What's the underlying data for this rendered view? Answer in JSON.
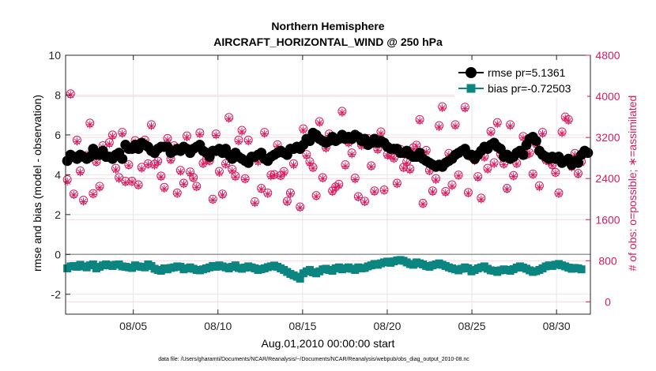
{
  "chart_data": {
    "type": "scatter",
    "title": "Northern Hemisphere",
    "subtitle": "AIRCRAFT_HORIZONTAL_WIND @ 250 hPa",
    "xlabel": "Aug.01,2010 00:00:00 start",
    "ylabel_left": "rmse and bias (model - observation)",
    "ylabel_right": "# of obs: o=possible; ∗=assimilated",
    "footnote": "data file: /Users/gharamti/Documents/NCAR/Reanalysis/~/Documents/NCAR/Reanalysis/webpub/obs_diag_output_2010-08.nc",
    "x_ticks": [
      "08/05",
      "08/10",
      "08/15",
      "08/20",
      "08/25",
      "08/30"
    ],
    "x_tick_days": [
      5,
      10,
      15,
      20,
      25,
      30
    ],
    "xlim_days": [
      1,
      32
    ],
    "ylim_left": [
      -3,
      10
    ],
    "y_ticks_left": [
      -2,
      0,
      2,
      4,
      6,
      8,
      10
    ],
    "ylim_right": [
      -240,
      4800
    ],
    "y_ticks_right": [
      0,
      800,
      1600,
      2400,
      3200,
      4000,
      4800
    ],
    "zero_line": 0,
    "grid": true,
    "legend_position": "top-right",
    "colors": {
      "rmse": "#000000",
      "bias": "#0a8580",
      "obs": "#d81b60"
    },
    "series": [
      {
        "name": "rmse pr=5.1361",
        "axis": "left",
        "marker": "circle",
        "values": [
          4.7,
          5.0,
          4.9,
          4.8,
          5.0,
          4.9,
          4.8,
          4.9,
          5.3,
          5.0,
          5.0,
          5.2,
          4.9,
          4.9,
          4.8,
          5.0,
          5.1,
          4.8,
          5.5,
          5.3,
          5.3,
          5.5,
          5.3,
          5.6,
          5.5,
          5.4,
          5.2,
          5.1,
          5.3,
          5.4,
          5.4,
          5.4,
          5.1,
          5.2,
          5.3,
          5.2,
          5.4,
          5.3,
          5.1,
          5.3,
          5.4,
          5.5,
          5.2,
          5.1,
          4.9,
          5.2,
          5.2,
          5.3,
          5.1,
          5.3,
          5.0,
          4.8,
          5.1,
          4.9,
          4.8,
          4.7,
          4.6,
          4.9,
          4.9,
          5.0,
          5.1,
          4.8,
          4.7,
          4.9,
          5.0,
          5.1,
          5.2,
          5.1,
          5.0,
          5.3,
          5.3,
          5.4,
          5.3,
          5.5,
          5.8,
          5.7,
          6.1,
          6.0,
          5.8,
          5.7,
          5.6,
          5.7,
          5.9,
          5.7,
          5.8,
          6.0,
          5.8,
          5.9,
          5.8,
          6.0,
          5.9,
          5.7,
          5.8,
          5.5,
          5.6,
          5.8,
          5.6,
          5.7,
          5.6,
          5.4,
          5.3,
          5.3,
          5.3,
          5.1,
          5.1,
          5.2,
          5.0,
          4.9,
          4.9,
          5.1,
          4.8,
          4.7,
          4.6,
          4.5,
          4.4,
          4.5,
          4.4,
          4.6,
          4.7,
          4.8,
          5.0,
          5.1,
          5.2,
          5.3,
          5.0,
          5.0,
          4.8,
          5.0,
          5.2,
          5.4,
          5.3,
          5.5,
          5.6,
          5.4,
          5.3,
          4.9,
          5.0,
          4.8,
          4.9,
          5.1,
          5.2,
          5.0,
          5.5,
          5.8,
          5.9,
          5.7,
          5.2,
          5.0,
          4.9,
          4.8,
          4.9,
          4.8,
          4.9,
          4.6,
          4.7,
          4.8,
          4.5,
          4.7,
          4.6,
          5.0,
          5.2,
          5.1
        ]
      },
      {
        "name": "bias pr=-0.72503",
        "axis": "left",
        "marker": "square",
        "values": [
          -0.7,
          -0.6,
          -0.58,
          -0.62,
          -0.52,
          -0.6,
          -0.65,
          -0.55,
          -0.5,
          -0.7,
          -0.62,
          -0.55,
          -0.5,
          -0.55,
          -0.58,
          -0.52,
          -0.5,
          -0.6,
          -0.62,
          -0.65,
          -0.68,
          -0.55,
          -0.6,
          -0.62,
          -0.65,
          -0.5,
          -0.58,
          -0.72,
          -0.78,
          -0.82,
          -0.7,
          -0.75,
          -0.68,
          -0.65,
          -0.6,
          -0.62,
          -0.75,
          -0.7,
          -0.65,
          -0.72,
          -0.78,
          -0.8,
          -0.75,
          -0.7,
          -0.65,
          -0.58,
          -0.62,
          -0.55,
          -0.6,
          -0.65,
          -0.7,
          -0.62,
          -0.55,
          -0.68,
          -0.72,
          -0.66,
          -0.6,
          -0.65,
          -0.7,
          -0.78,
          -0.74,
          -0.7,
          -0.64,
          -0.6,
          -0.56,
          -0.62,
          -0.7,
          -0.78,
          -0.88,
          -0.98,
          -1.05,
          -1.12,
          -1.22,
          -0.95,
          -0.85,
          -0.78,
          -0.9,
          -0.95,
          -0.85,
          -0.75,
          -0.72,
          -0.78,
          -0.82,
          -0.7,
          -0.65,
          -0.75,
          -0.7,
          -0.65,
          -0.72,
          -0.78,
          -0.65,
          -0.7,
          -0.68,
          -0.6,
          -0.55,
          -0.48,
          -0.52,
          -0.45,
          -0.4,
          -0.36,
          -0.42,
          -0.35,
          -0.3,
          -0.28,
          -0.32,
          -0.4,
          -0.48,
          -0.52,
          -0.4,
          -0.45,
          -0.5,
          -0.58,
          -0.62,
          -0.55,
          -0.5,
          -0.45,
          -0.52,
          -0.58,
          -0.65,
          -0.7,
          -0.75,
          -0.8,
          -0.72,
          -0.65,
          -0.7,
          -0.85,
          -0.78,
          -0.7,
          -0.65,
          -0.6,
          -0.72,
          -0.8,
          -0.82,
          -0.88,
          -0.8,
          -0.75,
          -0.78,
          -0.82,
          -0.74,
          -0.66,
          -0.6,
          -0.66,
          -0.72,
          -0.8,
          -0.88,
          -0.84,
          -0.78,
          -0.7,
          -0.6,
          -0.55,
          -0.58,
          -0.52,
          -0.48,
          -0.55,
          -0.6,
          -0.66,
          -0.72,
          -0.68,
          -0.7,
          -0.75
        ]
      },
      {
        "name": "possible",
        "axis": "right",
        "marker": "circle-open",
        "values": [
          2380,
          4050,
          2100,
          3150,
          2550,
          1980,
          2850,
          3480,
          2110,
          2730,
          2250,
          3040,
          2850,
          3100,
          3250,
          2600,
          2420,
          3300,
          2350,
          2670,
          2350,
          3140,
          2280,
          2620,
          3150,
          2690,
          3450,
          2680,
          2740,
          2450,
          2230,
          3180,
          2780,
          3040,
          2120,
          2560,
          2310,
          3230,
          2530,
          2420,
          2250,
          3290,
          2700,
          2770,
          2750,
          2000,
          3270,
          2540,
          2100,
          2690,
          3590,
          2580,
          2450,
          3150,
          3340,
          2400,
          3150,
          2810,
          1950,
          2750,
          2210,
          3300,
          2120,
          2470,
          2480,
          3060,
          2460,
          2540,
          1960,
          2120,
          2690,
          3030,
          1850,
          3370,
          2870,
          2730,
          2620,
          2070,
          3510,
          2420,
          3010,
          3270,
          2160,
          2240,
          2290,
          3710,
          2670,
          3110,
          2900,
          2410,
          2050,
          3060,
          1960,
          3180,
          2650,
          2160,
          2980,
          3310,
          2180,
          2870,
          2860,
          2800,
          2310,
          2970,
          2620,
          2730,
          2590,
          3000,
          3050,
          3550,
          1920,
          2950,
          2560,
          2160,
          2400,
          3430,
          3800,
          2150,
          2890,
          2280,
          3450,
          2470,
          4100,
          3790,
          2130,
          2830,
          2760,
          2440,
          2020,
          2830,
          2600,
          3320,
          2710,
          3490,
          2880,
          2690,
          2210,
          3450,
          2460,
          2700,
          2910,
          3220,
          2870,
          2900,
          2490,
          3080,
          2260,
          3300,
          2770,
          2750,
          2670,
          2520,
          2120,
          3310,
          3600,
          3550,
          2640,
          2890,
          2500,
          2730
        ]
      },
      {
        "name": "assimilated",
        "axis": "right",
        "marker": "asterisk",
        "values": [
          2340,
          4030,
          2080,
          3120,
          2520,
          1950,
          2820,
          3450,
          2090,
          2710,
          2220,
          3010,
          2830,
          3070,
          3220,
          2570,
          2390,
          3270,
          2320,
          2650,
          2330,
          3110,
          2260,
          2590,
          3120,
          2670,
          3420,
          2650,
          2720,
          2430,
          2200,
          3150,
          2750,
          3010,
          2100,
          2530,
          2290,
          3200,
          2500,
          2400,
          2230,
          3260,
          2680,
          2740,
          2730,
          1980,
          3240,
          2510,
          2080,
          2670,
          3560,
          2550,
          2430,
          3120,
          3310,
          2380,
          3120,
          2790,
          1920,
          2720,
          2190,
          3270,
          2100,
          2440,
          2460,
          3030,
          2440,
          2510,
          1940,
          2100,
          2660,
          3000,
          1830,
          3340,
          2840,
          2700,
          2600,
          2050,
          3480,
          2400,
          2980,
          3240,
          2140,
          2220,
          2260,
          3680,
          2640,
          3080,
          2870,
          2380,
          2030,
          3030,
          1940,
          3150,
          2630,
          2140,
          2950,
          3280,
          2160,
          2840,
          2830,
          2780,
          2290,
          2940,
          2600,
          2700,
          2560,
          2970,
          3030,
          3520,
          1900,
          2920,
          2540,
          2140,
          2370,
          3400,
          3770,
          2120,
          2860,
          2250,
          3420,
          2450,
          4070,
          3760,
          2110,
          2800,
          2740,
          2410,
          1990,
          2800,
          2570,
          3290,
          2680,
          3460,
          2850,
          2670,
          2190,
          3420,
          2440,
          2680,
          2880,
          3190,
          2850,
          2880,
          2470,
          3050,
          2230,
          3270,
          2740,
          2720,
          2650,
          2500,
          2100,
          3280,
          3570,
          3520,
          2610,
          2860,
          2480,
          2700
        ]
      }
    ]
  }
}
